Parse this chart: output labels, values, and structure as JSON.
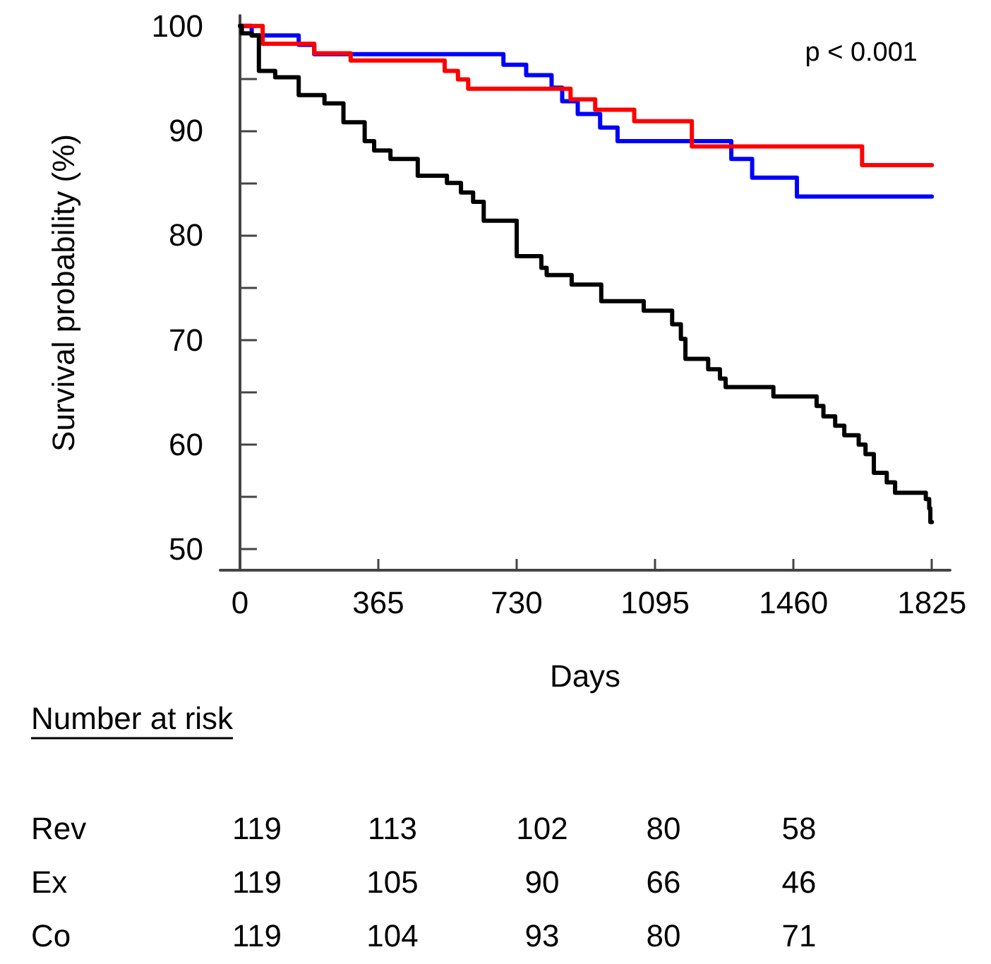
{
  "chart_data": {
    "type": "step",
    "xlabel": "Days",
    "ylabel": "Survival probability (%)",
    "xlim": [
      -52,
      1873
    ],
    "xticks": [
      0,
      365,
      730,
      1095,
      1460,
      1825
    ],
    "ylim": [
      48,
      101
    ],
    "yticks": [
      50,
      {
        "value": 55,
        "label": null
      },
      60,
      {
        "value": 65,
        "label": null
      },
      70,
      {
        "value": 75,
        "label": null
      },
      80,
      {
        "value": 85,
        "label": null
      },
      90,
      {
        "value": 95,
        "label": null
      },
      100
    ],
    "grid": false,
    "marker": "none",
    "line_style": "solid",
    "series": [
      {
        "color": "#0000ff",
        "x": [
          0,
          31,
          155,
          196,
          695,
          755,
          822,
          850,
          891,
          950,
          996,
          1296,
          1351,
          1469,
          1825
        ],
        "values": [
          100,
          99.1,
          98.2,
          97.3,
          96.3,
          95.3,
          94.1,
          92.8,
          91.6,
          90.3,
          89.0,
          87.3,
          85.5,
          83.7,
          83.7
        ]
      },
      {
        "color": "#ff0000",
        "x": [
          0,
          60,
          196,
          292,
          540,
          575,
          602,
          872,
          937,
          1040,
          1192,
          1641,
          1825
        ],
        "values": [
          100,
          98.3,
          97.4,
          96.7,
          95.7,
          94.9,
          94.0,
          93.0,
          92.0,
          90.9,
          88.5,
          86.7,
          86.7
        ]
      },
      {
        "color": "#000000",
        "x": [
          0,
          5,
          31,
          50,
          93,
          155,
          223,
          273,
          329,
          354,
          397,
          469,
          546,
          583,
          615,
          643,
          730,
          795,
          809,
          875,
          953,
          1065,
          1140,
          1163,
          1175,
          1235,
          1266,
          1281,
          1407,
          1521,
          1539,
          1570,
          1594,
          1632,
          1650,
          1672,
          1706,
          1728,
          1809,
          1818,
          1821,
          1825
        ],
        "values": [
          100,
          99.3,
          99.1,
          95.7,
          95.1,
          93.4,
          92.6,
          90.8,
          89.0,
          88.1,
          87.3,
          85.7,
          85.0,
          84.1,
          83.2,
          81.4,
          78.0,
          76.9,
          76.2,
          75.3,
          73.7,
          72.8,
          71.5,
          70.1,
          68.2,
          67.2,
          66.3,
          65.5,
          64.6,
          63.7,
          62.7,
          61.8,
          60.9,
          60.0,
          59.1,
          57.3,
          56.4,
          55.4,
          54.8,
          53.9,
          52.6,
          52.6
        ]
      }
    ],
    "annotations": [
      "p < 0.001",
      "Number at risk",
      "Rev",
      "119",
      "113",
      "102",
      "80",
      "58",
      "Ex",
      "119",
      "105",
      "90",
      "66",
      "46",
      "Co",
      "119",
      "104",
      "93",
      "80",
      "71"
    ]
  }
}
